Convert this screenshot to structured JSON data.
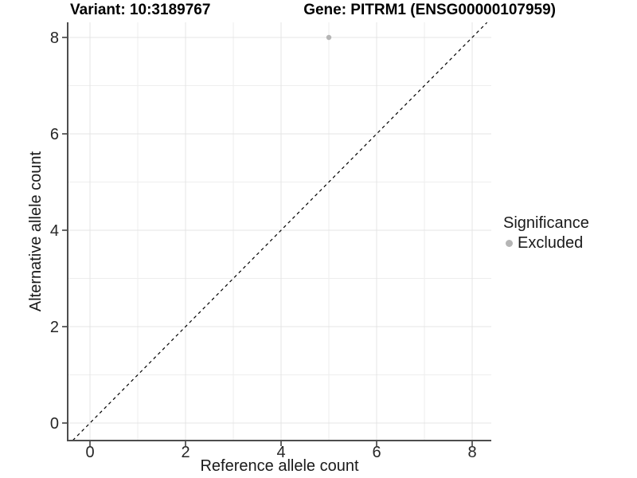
{
  "chart_data": {
    "type": "scatter",
    "title_left": "Variant: 10:3189767",
    "title_right": "Gene: PITRM1 (ENSG00000107959)",
    "xlabel": "Reference allele count",
    "ylabel": "Alternative allele count",
    "xlim": [
      -0.47,
      8.4
    ],
    "ylim": [
      -0.36,
      8.31
    ],
    "xticks": [
      0,
      2,
      4,
      6,
      8
    ],
    "yticks": [
      0,
      2,
      4,
      6,
      8
    ],
    "x_minor_gridlines": [
      1,
      3,
      5,
      7
    ],
    "y_minor_gridlines": [
      1,
      3,
      5,
      7
    ],
    "grid": "on",
    "identity_line": {
      "slope": 1,
      "intercept": 0,
      "style": "dashed",
      "color": "#000000"
    },
    "series": [
      {
        "name": "Excluded",
        "color": "#b5b5b5",
        "points": [
          {
            "x": 5,
            "y": 8
          }
        ]
      }
    ],
    "legend": {
      "title": "Significance",
      "position": "right",
      "entries": [
        {
          "label": "Excluded",
          "color": "#b5b5b5"
        }
      ]
    }
  },
  "colors": {
    "background": "#ffffff",
    "grid_major": "#e4e4e4",
    "grid_minor": "#eeeeee",
    "axis_line": "#4d4d4d",
    "tick_mark": "#333333",
    "tick_text": "#262626",
    "point": "#b5b5b5"
  }
}
